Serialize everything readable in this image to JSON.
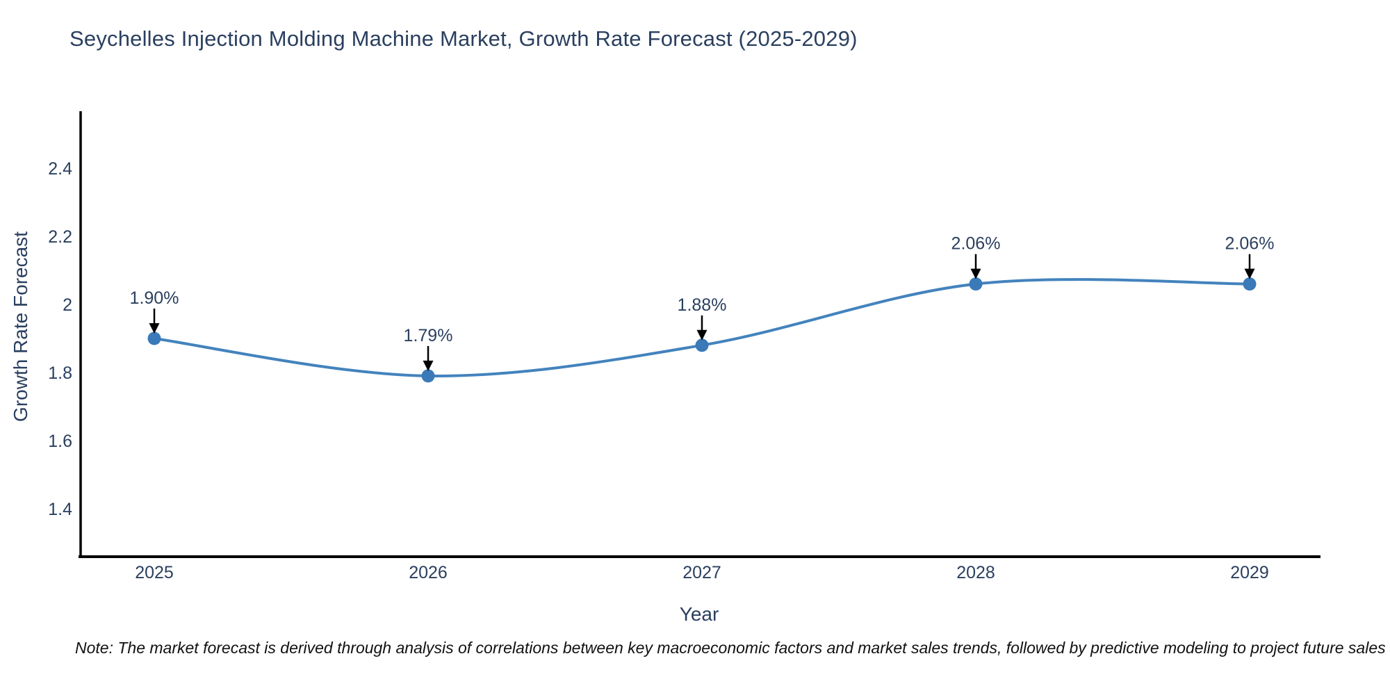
{
  "title": "Seychelles Injection Molding Machine Market, Growth Rate Forecast (2025-2029)",
  "note": "Note: The market forecast is derived through analysis of correlations between key macroeconomic factors and market sales trends, followed by predictive modeling to project future sales",
  "chart_data": {
    "type": "line",
    "title": "Seychelles Injection Molding Machine Market, Growth Rate Forecast (2025-2029)",
    "xlabel": "Year",
    "ylabel": "Growth Rate Forecast",
    "categories": [
      "2025",
      "2026",
      "2027",
      "2028",
      "2029"
    ],
    "series": [
      {
        "name": "Growth Rate Forecast",
        "values": [
          1.9,
          1.79,
          1.88,
          2.06,
          2.06
        ]
      }
    ],
    "point_labels": [
      "1.90%",
      "1.79%",
      "1.88%",
      "2.06%",
      "2.06%"
    ],
    "y_ticks": [
      {
        "value": 2.4,
        "label": "2.4"
      },
      {
        "value": 2.2,
        "label": "2.2"
      },
      {
        "value": 2.0,
        "label": "2"
      },
      {
        "value": 1.8,
        "label": "1.8"
      },
      {
        "value": 1.6,
        "label": "1.6"
      },
      {
        "value": 1.4,
        "label": "1.4"
      }
    ],
    "ylim": [
      1.26,
      2.57
    ],
    "grid": false,
    "legend": "none",
    "line_shape": "spline",
    "colors": {
      "line": "#4383bd",
      "marker": "#3b7ab8",
      "text": "#2a3f5f",
      "axis": "#000000",
      "arrow": "#000000"
    }
  }
}
